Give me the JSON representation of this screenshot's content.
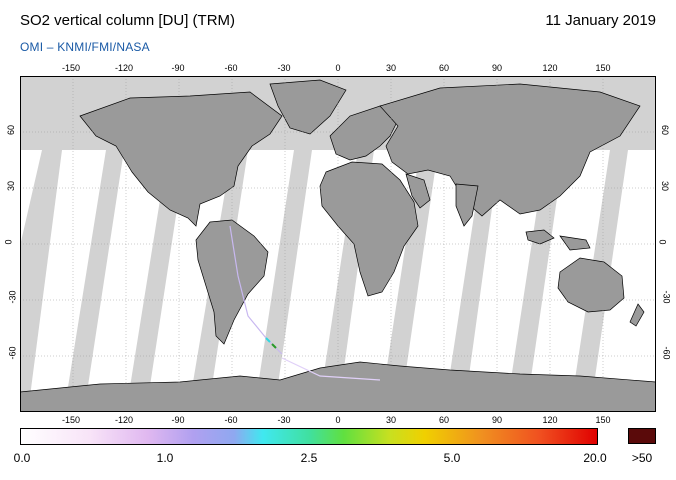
{
  "header": {
    "title": "SO2 vertical column [DU] (TRM)",
    "date": "11 January 2019",
    "subtitle": "OMI  –  KNMI/FMI/NASA"
  },
  "map": {
    "projection": "equirectangular",
    "lon_range": [
      -180,
      180
    ],
    "lat_range": [
      -90,
      90
    ],
    "lon_ticks": [
      "-150",
      "-120",
      "-90",
      "-60",
      "-30",
      "0",
      "30",
      "60",
      "90",
      "120",
      "150"
    ],
    "lat_ticks": [
      "60",
      "30",
      "0",
      "-30",
      "-60"
    ],
    "colors": {
      "land": "#9a9a9a",
      "ocean": "#ffffff",
      "no_data": "#d2d2d2",
      "coast": "#000000",
      "grid": "#9a9a9a"
    }
  },
  "colorbar": {
    "labels": [
      {
        "value": "0.0"
      },
      {
        "value": "1.0"
      },
      {
        "value": "2.5"
      },
      {
        "value": "5.0"
      },
      {
        "value": "20.0"
      }
    ],
    "over_label": ">50",
    "over_color": "#5a0a0a"
  }
}
